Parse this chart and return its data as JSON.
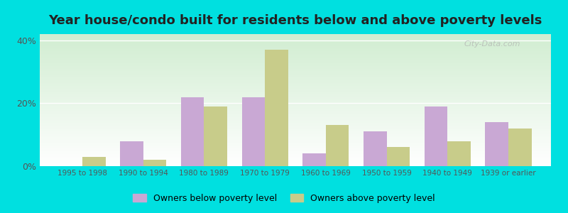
{
  "categories": [
    "1995 to 1998",
    "1990 to 1994",
    "1980 to 1989",
    "1970 to 1979",
    "1960 to 1969",
    "1950 to 1959",
    "1940 to 1949",
    "1939 or earlier"
  ],
  "below_poverty": [
    0,
    8,
    22,
    22,
    4,
    11,
    19,
    14
  ],
  "above_poverty": [
    3,
    2,
    19,
    37,
    13,
    6,
    8,
    12
  ],
  "below_color": "#c9a8d4",
  "above_color": "#c8cc8a",
  "title": "Year house/condo built for residents below and above poverty levels",
  "title_fontsize": 13,
  "legend_below": "Owners below poverty level",
  "legend_above": "Owners above poverty level",
  "ylim": [
    0,
    42
  ],
  "yticks": [
    0,
    20,
    40
  ],
  "ytick_labels": [
    "0%",
    "20%",
    "40%"
  ],
  "bar_width": 0.38,
  "outer_bg": "#00e0e0",
  "watermark": "City-Data.com"
}
